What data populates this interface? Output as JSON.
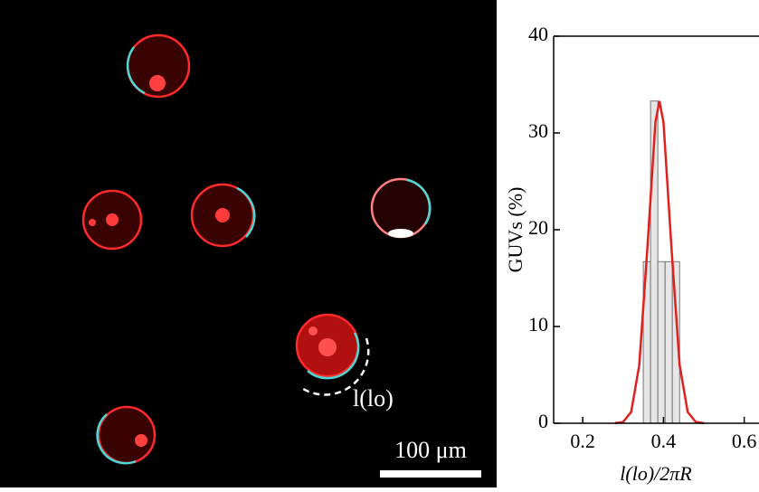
{
  "image": {
    "annotation": "l(lo)",
    "scale_bar_label": "100 μm"
  },
  "chart_data": {
    "type": "histogram",
    "xlabel": "l(lo)/2πR",
    "ylabel": "GUVs (%)",
    "bins": [
      0.35,
      0.368,
      0.386,
      0.404,
      0.422,
      0.44
    ],
    "counts": [
      16.7,
      33.3,
      16.7,
      16.7,
      16.7
    ],
    "color": "#e6e6e6",
    "fit": {
      "color": "#e0201e",
      "x": [
        0.28,
        0.3,
        0.32,
        0.34,
        0.36,
        0.38,
        0.39,
        0.4,
        0.42,
        0.44,
        0.46,
        0.48,
        0.5
      ],
      "values": [
        0.01,
        0.13,
        1.16,
        6.0,
        18.0,
        31.1,
        33.3,
        31.1,
        18.0,
        6.0,
        1.16,
        0.13,
        0.01
      ]
    },
    "xlim": [
      0.128,
      0.65
    ],
    "xticks": [
      0.2,
      0.4,
      0.6
    ],
    "ylim": [
      0,
      40
    ],
    "yticks": [
      0,
      10,
      20,
      30,
      40
    ]
  }
}
